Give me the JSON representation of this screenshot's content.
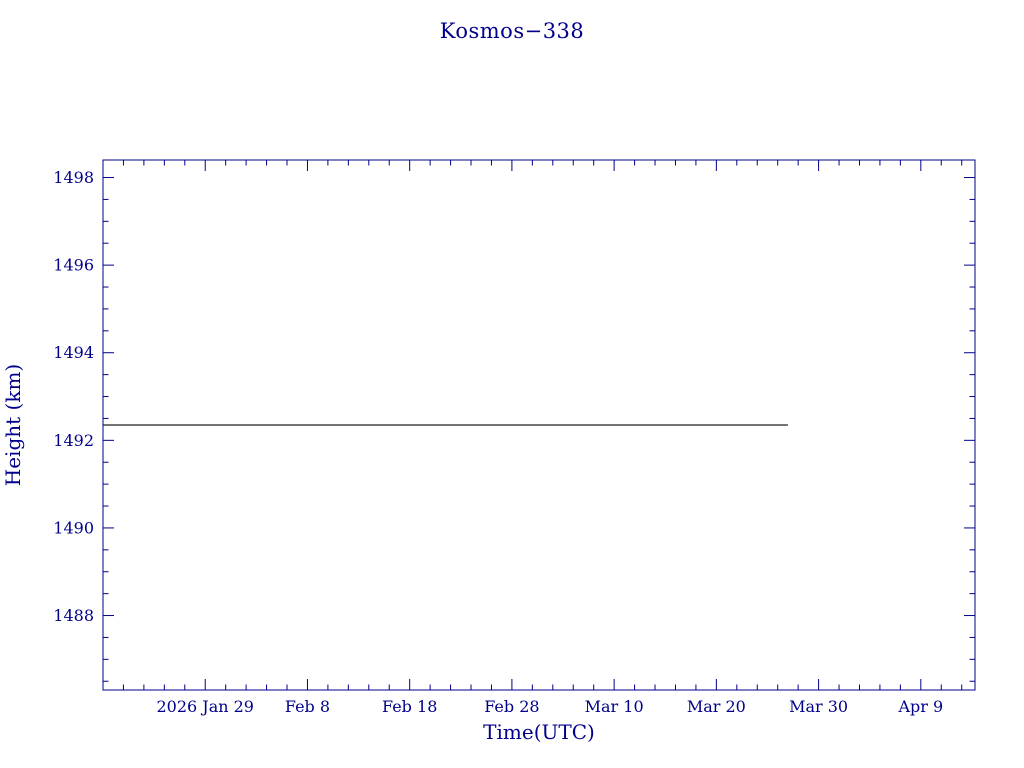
{
  "page": {
    "title": "Kosmos−338"
  },
  "colors": {
    "axis": "#00008B",
    "text": "#00008B",
    "line": "#222222",
    "background": "#ffffff"
  },
  "chart_data": {
    "type": "line",
    "title": "Kosmos−338",
    "xlabel": "Time(UTC)",
    "ylabel": "Height (km)",
    "grid": false,
    "legend": null,
    "x_axis": {
      "unit": "days (0 = 2026 Jan 29)",
      "range": [
        -10,
        75.3
      ],
      "major_ticks": [
        {
          "day": 0,
          "label": "2026 Jan 29"
        },
        {
          "day": 10,
          "label": "Feb 8"
        },
        {
          "day": 20,
          "label": "Feb 18"
        },
        {
          "day": 30,
          "label": "Feb 28"
        },
        {
          "day": 40,
          "label": "Mar 10"
        },
        {
          "day": 50,
          "label": "Mar 20"
        },
        {
          "day": 60,
          "label": "Mar 30"
        },
        {
          "day": 70,
          "label": "Apr 9"
        }
      ],
      "minor_tick_step_days": 2
    },
    "y_axis": {
      "range": [
        1486.3,
        1498.4
      ],
      "major_ticks": [
        1488,
        1490,
        1492,
        1494,
        1496,
        1498
      ],
      "minor_tick_step": 0.5
    },
    "series": [
      {
        "name": "height-km",
        "color": "#222222",
        "style": "solid",
        "constant_value": 1492.35,
        "points": [
          {
            "day": -10,
            "value": 1492.35
          },
          {
            "day": 57,
            "value": 1492.35
          }
        ]
      }
    ]
  }
}
